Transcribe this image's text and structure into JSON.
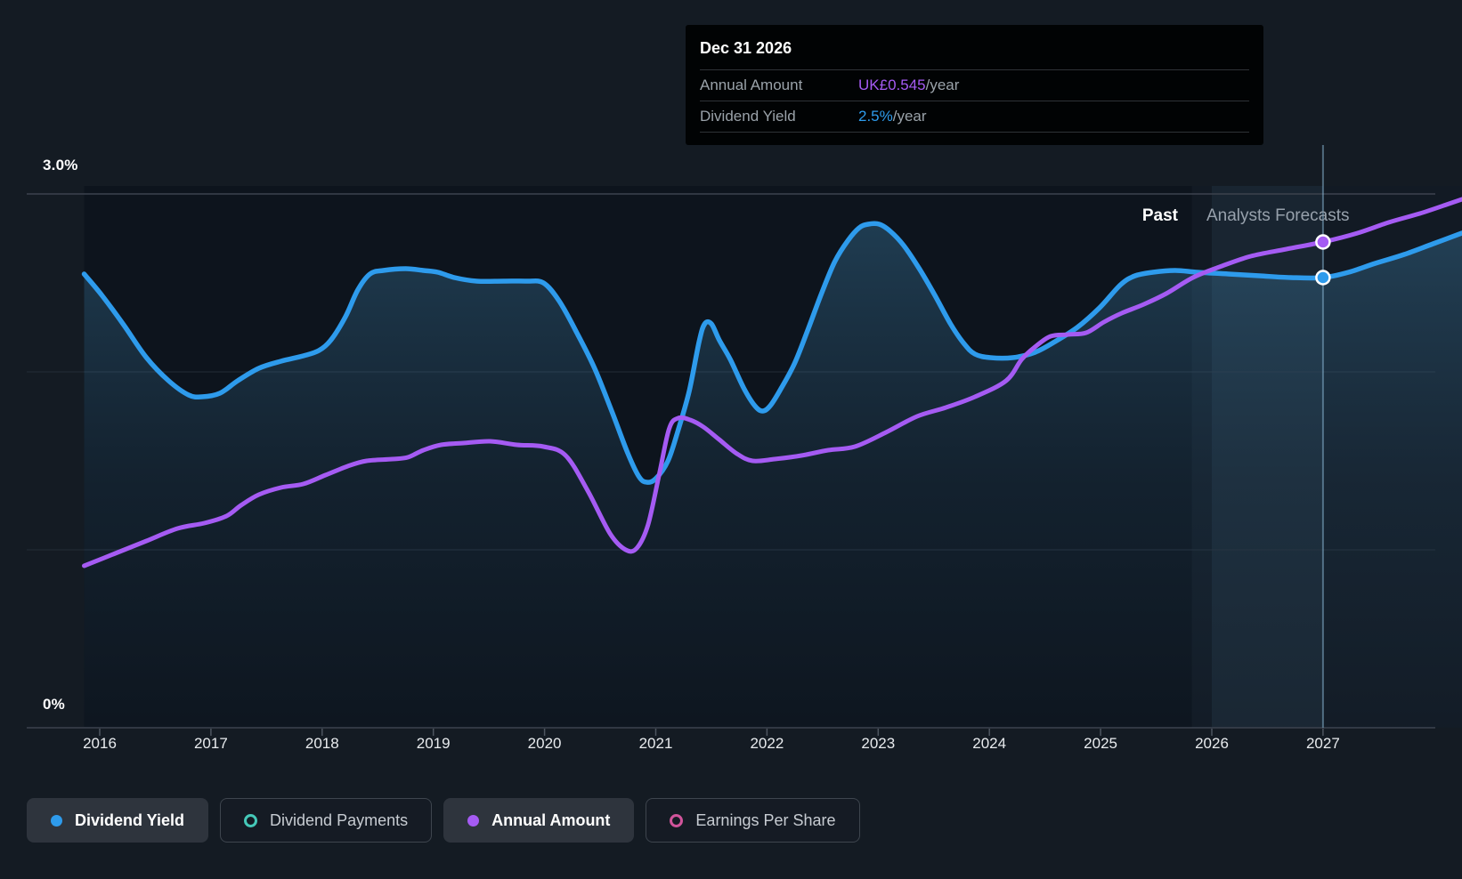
{
  "tooltip": {
    "date": "Dec 31 2026",
    "rows": [
      {
        "label": "Annual Amount",
        "value": "UK£0.545",
        "suffix": "/year",
        "value_color": "#a55bf3"
      },
      {
        "label": "Dividend Yield",
        "value": "2.5%",
        "suffix": "/year",
        "value_color": "#2e9bec"
      }
    ]
  },
  "chart_labels": {
    "past": "Past",
    "forecast": "Analysts Forecasts",
    "y_top": "3.0%",
    "y_bottom": "0%"
  },
  "legend": [
    {
      "label": "Dividend Yield",
      "color": "#2e9bec",
      "active": true
    },
    {
      "label": "Dividend Payments",
      "color": "#45c8b8",
      "active": false
    },
    {
      "label": "Annual Amount",
      "color": "#a55bf3",
      "active": true
    },
    {
      "label": "Earnings Per Share",
      "color": "#d0549b",
      "active": false
    }
  ],
  "chart_data": {
    "type": "area",
    "title": "",
    "x_axis": {
      "tick_years": [
        2016,
        2017,
        2018,
        2019,
        2020,
        2021,
        2022,
        2023,
        2024,
        2025,
        2026,
        2027
      ],
      "range": [
        2015.86,
        2028.25
      ]
    },
    "y_axis": {
      "unit": "%",
      "range": [
        0,
        3
      ],
      "gridlines": [
        3,
        2,
        1,
        0
      ],
      "top_label": "3.0%",
      "bottom_label": "0%"
    },
    "divider_year": 2025.82,
    "hover": {
      "date": "Dec 31 2026",
      "year": 2027,
      "band": [
        2026,
        2027
      ]
    },
    "grid_on": true,
    "legend_position": "bottom",
    "series": [
      {
        "name": "Dividend Yield",
        "color": "#2e9bec",
        "style": "line+area",
        "unit": "%",
        "points": [
          [
            2015.86,
            2.55
          ],
          [
            2016.02,
            2.43
          ],
          [
            2016.22,
            2.26
          ],
          [
            2016.42,
            2.08
          ],
          [
            2016.62,
            1.95
          ],
          [
            2016.8,
            1.87
          ],
          [
            2016.92,
            1.86
          ],
          [
            2017.08,
            1.88
          ],
          [
            2017.24,
            1.95
          ],
          [
            2017.43,
            2.02
          ],
          [
            2017.63,
            2.06
          ],
          [
            2017.83,
            2.09
          ],
          [
            2017.97,
            2.12
          ],
          [
            2018.08,
            2.18
          ],
          [
            2018.21,
            2.31
          ],
          [
            2018.32,
            2.46
          ],
          [
            2018.43,
            2.55
          ],
          [
            2018.55,
            2.57
          ],
          [
            2018.75,
            2.58
          ],
          [
            2018.91,
            2.57
          ],
          [
            2019.04,
            2.56
          ],
          [
            2019.19,
            2.53
          ],
          [
            2019.39,
            2.51
          ],
          [
            2019.63,
            2.51
          ],
          [
            2019.84,
            2.51
          ],
          [
            2019.99,
            2.5
          ],
          [
            2020.13,
            2.4
          ],
          [
            2020.29,
            2.22
          ],
          [
            2020.45,
            2.02
          ],
          [
            2020.61,
            1.77
          ],
          [
            2020.75,
            1.54
          ],
          [
            2020.85,
            1.41
          ],
          [
            2020.92,
            1.38
          ],
          [
            2021.0,
            1.4
          ],
          [
            2021.11,
            1.5
          ],
          [
            2021.2,
            1.67
          ],
          [
            2021.3,
            1.89
          ],
          [
            2021.39,
            2.17
          ],
          [
            2021.44,
            2.27
          ],
          [
            2021.5,
            2.27
          ],
          [
            2021.57,
            2.18
          ],
          [
            2021.67,
            2.07
          ],
          [
            2021.79,
            1.91
          ],
          [
            2021.89,
            1.81
          ],
          [
            2021.96,
            1.78
          ],
          [
            2022.03,
            1.81
          ],
          [
            2022.13,
            1.91
          ],
          [
            2022.25,
            2.05
          ],
          [
            2022.37,
            2.24
          ],
          [
            2022.49,
            2.44
          ],
          [
            2022.61,
            2.62
          ],
          [
            2022.73,
            2.74
          ],
          [
            2022.83,
            2.81
          ],
          [
            2022.91,
            2.83
          ],
          [
            2023.01,
            2.83
          ],
          [
            2023.11,
            2.79
          ],
          [
            2023.23,
            2.71
          ],
          [
            2023.37,
            2.58
          ],
          [
            2023.51,
            2.43
          ],
          [
            2023.65,
            2.27
          ],
          [
            2023.77,
            2.16
          ],
          [
            2023.87,
            2.1
          ],
          [
            2024.01,
            2.08
          ],
          [
            2024.21,
            2.08
          ],
          [
            2024.41,
            2.11
          ],
          [
            2024.59,
            2.17
          ],
          [
            2024.79,
            2.25
          ],
          [
            2024.99,
            2.36
          ],
          [
            2025.18,
            2.49
          ],
          [
            2025.31,
            2.54
          ],
          [
            2025.47,
            2.56
          ],
          [
            2025.67,
            2.57
          ],
          [
            2025.87,
            2.56
          ],
          [
            2026.15,
            2.55
          ],
          [
            2026.43,
            2.54
          ],
          [
            2026.71,
            2.53
          ],
          [
            2027.0,
            2.53
          ],
          [
            2027.23,
            2.56
          ],
          [
            2027.47,
            2.61
          ],
          [
            2027.73,
            2.66
          ],
          [
            2027.99,
            2.72
          ],
          [
            2028.25,
            2.78
          ]
        ]
      },
      {
        "name": "Annual Amount",
        "color": "#a55bf3",
        "style": "line",
        "unit": "plotted on separate amount scale; equals UK£0.545/year at Dec 31 2026 marker",
        "points": [
          [
            2015.86,
            0.91
          ],
          [
            2016.14,
            0.98
          ],
          [
            2016.42,
            1.05
          ],
          [
            2016.7,
            1.12
          ],
          [
            2016.94,
            1.15
          ],
          [
            2017.14,
            1.19
          ],
          [
            2017.27,
            1.25
          ],
          [
            2017.43,
            1.31
          ],
          [
            2017.63,
            1.35
          ],
          [
            2017.83,
            1.37
          ],
          [
            2018.03,
            1.42
          ],
          [
            2018.23,
            1.47
          ],
          [
            2018.4,
            1.5
          ],
          [
            2018.63,
            1.51
          ],
          [
            2018.77,
            1.52
          ],
          [
            2018.91,
            1.56
          ],
          [
            2019.07,
            1.59
          ],
          [
            2019.27,
            1.6
          ],
          [
            2019.51,
            1.61
          ],
          [
            2019.75,
            1.59
          ],
          [
            2019.99,
            1.58
          ],
          [
            2020.19,
            1.53
          ],
          [
            2020.39,
            1.33
          ],
          [
            2020.59,
            1.09
          ],
          [
            2020.73,
            1.0
          ],
          [
            2020.83,
            1.01
          ],
          [
            2020.93,
            1.14
          ],
          [
            2021.03,
            1.42
          ],
          [
            2021.12,
            1.68
          ],
          [
            2021.2,
            1.74
          ],
          [
            2021.31,
            1.73
          ],
          [
            2021.43,
            1.69
          ],
          [
            2021.57,
            1.62
          ],
          [
            2021.73,
            1.54
          ],
          [
            2021.87,
            1.5
          ],
          [
            2022.07,
            1.51
          ],
          [
            2022.31,
            1.53
          ],
          [
            2022.55,
            1.56
          ],
          [
            2022.79,
            1.58
          ],
          [
            2023.07,
            1.66
          ],
          [
            2023.35,
            1.75
          ],
          [
            2023.61,
            1.8
          ],
          [
            2023.87,
            1.86
          ],
          [
            2024.15,
            1.95
          ],
          [
            2024.29,
            2.07
          ],
          [
            2024.41,
            2.14
          ],
          [
            2024.55,
            2.2
          ],
          [
            2024.71,
            2.21
          ],
          [
            2024.87,
            2.22
          ],
          [
            2025.03,
            2.28
          ],
          [
            2025.19,
            2.33
          ],
          [
            2025.39,
            2.38
          ],
          [
            2025.59,
            2.44
          ],
          [
            2025.83,
            2.53
          ],
          [
            2026.07,
            2.59
          ],
          [
            2026.35,
            2.65
          ],
          [
            2026.67,
            2.69
          ],
          [
            2027.0,
            2.73
          ],
          [
            2027.31,
            2.78
          ],
          [
            2027.59,
            2.84
          ],
          [
            2027.87,
            2.89
          ],
          [
            2028.11,
            2.94
          ],
          [
            2028.25,
            2.97
          ]
        ]
      }
    ],
    "inactive_series": [
      "Dividend Payments",
      "Earnings Per Share"
    ],
    "markers": [
      {
        "series": "Dividend Yield",
        "year": 2027,
        "value": 2.53,
        "display": "2.5%/year"
      },
      {
        "series": "Annual Amount",
        "year": 2027,
        "value": 2.73,
        "display": "UK£0.545/year"
      }
    ]
  },
  "colors": {
    "page_bg": "#141b23",
    "plot_bg_past": "#0d141d",
    "plot_bg_forecast": "#121a24",
    "grid_strong": "#3c434e",
    "grid_faint": "#242c37",
    "hover_line": "rgba(140,185,215,0.5)",
    "tooltip_bg": "#010304"
  }
}
